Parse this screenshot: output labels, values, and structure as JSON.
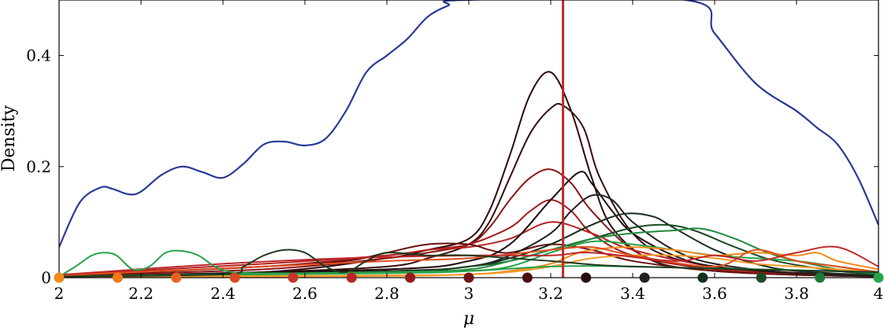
{
  "chart_data": {
    "type": "line",
    "xlabel": "μ",
    "ylabel": "Density",
    "xlim": [
      2,
      4
    ],
    "ylim": [
      0,
      0.5
    ],
    "x_ticks": [
      2,
      2.2,
      2.4,
      2.6,
      2.8,
      3,
      3.2,
      3.4,
      3.6,
      3.8,
      4
    ],
    "x_tick_labels": [
      "2",
      "2.2",
      "2.4",
      "2.6",
      "2.8",
      "3",
      "3.2",
      "3.4",
      "3.6",
      "3.8",
      "4"
    ],
    "y_ticks": [
      0,
      0.2,
      0.4
    ],
    "y_tick_labels": [
      "0",
      "0.2",
      "0.4"
    ],
    "grid": false,
    "vline": {
      "x": 3.23,
      "color": "#c0282b"
    },
    "series": [
      {
        "color": "#2a3a96",
        "x": [
          2.0,
          2.05,
          2.1,
          2.13,
          2.17,
          2.2,
          2.25,
          2.3,
          2.35,
          2.4,
          2.45,
          2.5,
          2.55,
          2.6,
          2.65,
          2.7,
          2.75,
          2.8,
          2.85,
          2.9,
          2.95,
          2.99,
          3.53,
          3.6,
          3.7,
          3.8,
          3.85,
          3.9,
          3.95,
          4.0
        ],
        "y": [
          0.055,
          0.135,
          0.162,
          0.16,
          0.15,
          0.155,
          0.185,
          0.2,
          0.19,
          0.18,
          0.205,
          0.24,
          0.245,
          0.238,
          0.25,
          0.3,
          0.37,
          0.4,
          0.43,
          0.47,
          0.49,
          0.5,
          0.5,
          0.44,
          0.35,
          0.3,
          0.27,
          0.24,
          0.18,
          0.095
        ]
      },
      {
        "color": "#2a0608",
        "x": [
          2.0,
          2.5,
          2.8,
          2.9,
          3.0,
          3.05,
          3.1,
          3.15,
          3.2,
          3.25,
          3.3,
          3.35,
          3.45,
          3.6,
          3.8,
          4.0
        ],
        "y": [
          0.002,
          0.01,
          0.035,
          0.05,
          0.07,
          0.12,
          0.22,
          0.33,
          0.37,
          0.3,
          0.18,
          0.09,
          0.03,
          0.012,
          0.005,
          0.002
        ]
      },
      {
        "color": "#3a0c0c",
        "x": [
          2.0,
          2.5,
          2.8,
          2.9,
          3.0,
          3.05,
          3.1,
          3.15,
          3.2,
          3.23,
          3.28,
          3.32,
          3.4,
          3.5,
          3.7,
          4.0
        ],
        "y": [
          0.002,
          0.01,
          0.02,
          0.035,
          0.06,
          0.1,
          0.18,
          0.26,
          0.305,
          0.31,
          0.27,
          0.18,
          0.08,
          0.035,
          0.012,
          0.003
        ]
      },
      {
        "color": "#8a1616",
        "x": [
          2.0,
          2.5,
          2.8,
          2.9,
          3.0,
          3.05,
          3.1,
          3.15,
          3.2,
          3.25,
          3.3,
          3.4,
          3.5,
          3.7,
          4.0
        ],
        "y": [
          0.004,
          0.015,
          0.035,
          0.045,
          0.06,
          0.09,
          0.14,
          0.18,
          0.195,
          0.17,
          0.12,
          0.05,
          0.025,
          0.012,
          0.004
        ]
      },
      {
        "color": "#a11d1d",
        "x": [
          2.0,
          2.5,
          2.8,
          2.9,
          3.0,
          3.1,
          3.15,
          3.2,
          3.25,
          3.3,
          3.4,
          3.6,
          3.8,
          4.0
        ],
        "y": [
          0.004,
          0.02,
          0.04,
          0.05,
          0.06,
          0.09,
          0.12,
          0.14,
          0.12,
          0.08,
          0.04,
          0.015,
          0.006,
          0.003
        ]
      },
      {
        "color": "#b42222",
        "x": [
          2.0,
          2.5,
          2.8,
          2.9,
          3.0,
          3.1,
          3.2,
          3.3,
          3.4,
          3.6,
          3.8,
          4.0
        ],
        "y": [
          0.005,
          0.025,
          0.04,
          0.05,
          0.055,
          0.07,
          0.1,
          0.08,
          0.05,
          0.02,
          0.008,
          0.004
        ]
      },
      {
        "color": "#6a1010",
        "x": [
          2.0,
          2.5,
          2.7,
          2.8,
          2.9,
          3.0,
          3.05,
          3.1,
          3.2,
          3.3,
          3.4,
          3.6,
          3.8,
          4.0
        ],
        "y": [
          0.003,
          0.02,
          0.03,
          0.045,
          0.06,
          0.06,
          0.05,
          0.045,
          0.06,
          0.05,
          0.03,
          0.012,
          0.005,
          0.002
        ]
      },
      {
        "color": "#1e0a0a",
        "x": [
          2.0,
          2.8,
          3.0,
          3.1,
          3.2,
          3.27,
          3.3,
          3.35,
          3.4,
          3.5,
          3.6,
          3.8,
          4.0
        ],
        "y": [
          0.002,
          0.015,
          0.03,
          0.06,
          0.14,
          0.19,
          0.17,
          0.12,
          0.08,
          0.04,
          0.02,
          0.008,
          0.003
        ]
      },
      {
        "color": "#1f1f1f",
        "x": [
          2.0,
          2.8,
          3.0,
          3.1,
          3.2,
          3.25,
          3.3,
          3.35,
          3.4,
          3.5,
          3.6,
          3.8,
          4.0
        ],
        "y": [
          0.002,
          0.012,
          0.02,
          0.04,
          0.08,
          0.12,
          0.148,
          0.14,
          0.1,
          0.05,
          0.025,
          0.008,
          0.003
        ]
      },
      {
        "color": "#152e1c",
        "x": [
          2.0,
          2.8,
          3.0,
          3.1,
          3.2,
          3.3,
          3.38,
          3.45,
          3.5,
          3.6,
          3.7,
          3.8,
          4.0
        ],
        "y": [
          0.002,
          0.01,
          0.02,
          0.035,
          0.06,
          0.095,
          0.115,
          0.11,
          0.09,
          0.05,
          0.025,
          0.012,
          0.004
        ]
      },
      {
        "color": "#1b4a26",
        "x": [
          2.0,
          2.8,
          3.0,
          3.1,
          3.2,
          3.3,
          3.4,
          3.48,
          3.55,
          3.65,
          3.75,
          3.9,
          4.0
        ],
        "y": [
          0.002,
          0.01,
          0.02,
          0.03,
          0.05,
          0.07,
          0.09,
          0.095,
          0.085,
          0.055,
          0.03,
          0.012,
          0.006
        ]
      },
      {
        "color": "#228a3c",
        "x": [
          2.0,
          2.8,
          3.0,
          3.1,
          3.2,
          3.3,
          3.4,
          3.5,
          3.57,
          3.65,
          3.75,
          3.9,
          4.0
        ],
        "y": [
          0.002,
          0.01,
          0.015,
          0.03,
          0.05,
          0.07,
          0.08,
          0.085,
          0.088,
          0.07,
          0.04,
          0.015,
          0.007
        ]
      },
      {
        "color": "#2aa24a",
        "x": [
          2.0,
          2.8,
          3.0,
          3.1,
          3.2,
          3.3,
          3.4,
          3.5,
          3.6,
          3.7,
          3.8,
          3.9,
          4.0
        ],
        "y": [
          0.002,
          0.008,
          0.012,
          0.02,
          0.045,
          0.065,
          0.06,
          0.05,
          0.04,
          0.035,
          0.03,
          0.02,
          0.01
        ]
      },
      {
        "color": "#f08a1a",
        "x": [
          2.0,
          2.8,
          3.0,
          3.1,
          3.2,
          3.25,
          3.3,
          3.4,
          3.5,
          3.6,
          3.7,
          3.8,
          3.85,
          3.9,
          4.0
        ],
        "y": [
          0.001,
          0.004,
          0.006,
          0.012,
          0.025,
          0.04,
          0.05,
          0.055,
          0.05,
          0.04,
          0.045,
          0.04,
          0.045,
          0.03,
          0.015
        ]
      },
      {
        "color": "#f59a2a",
        "x": [
          2.0,
          2.8,
          3.0,
          3.1,
          3.2,
          3.3,
          3.4,
          3.5,
          3.6,
          3.7,
          3.8,
          3.9,
          4.0
        ],
        "y": [
          0.001,
          0.003,
          0.006,
          0.01,
          0.02,
          0.035,
          0.04,
          0.04,
          0.035,
          0.025,
          0.02,
          0.015,
          0.01
        ]
      },
      {
        "color": "#e0501e",
        "x": [
          2.0,
          2.5,
          2.8,
          3.0,
          3.2,
          3.3,
          3.4,
          3.6,
          3.7,
          3.8,
          3.9,
          4.0
        ],
        "y": [
          0.004,
          0.02,
          0.03,
          0.035,
          0.05,
          0.055,
          0.04,
          0.02,
          0.05,
          0.03,
          0.02,
          0.01
        ]
      },
      {
        "color": "#c0282b",
        "x": [
          2.0,
          2.4,
          2.7,
          3.0,
          3.2,
          3.3,
          3.5,
          3.6,
          3.7,
          3.8,
          3.9,
          4.0
        ],
        "y": [
          0.005,
          0.025,
          0.035,
          0.04,
          0.04,
          0.045,
          0.03,
          0.04,
          0.03,
          0.045,
          0.055,
          0.02
        ]
      },
      {
        "color": "#2aa24a",
        "x": [
          2.0,
          2.04,
          2.08,
          2.11,
          2.14,
          2.18,
          2.22,
          2.26,
          2.3,
          2.34,
          2.38,
          2.42,
          2.5,
          2.6,
          2.8,
          3.0,
          3.2,
          3.4,
          4.0
        ],
        "y": [
          0.002,
          0.02,
          0.04,
          0.045,
          0.04,
          0.015,
          0.02,
          0.045,
          0.048,
          0.04,
          0.02,
          0.01,
          0.008,
          0.008,
          0.01,
          0.012,
          0.02,
          0.02,
          0.01
        ]
      },
      {
        "color": "#1e3a1e",
        "x": [
          2.0,
          2.4,
          2.45,
          2.5,
          2.55,
          2.6,
          2.65,
          2.7,
          2.75,
          2.8,
          2.9,
          3.0,
          3.2,
          3.4,
          4.0
        ],
        "y": [
          0.002,
          0.006,
          0.02,
          0.04,
          0.05,
          0.045,
          0.02,
          0.01,
          0.03,
          0.045,
          0.04,
          0.04,
          0.03,
          0.02,
          0.01
        ]
      }
    ],
    "markers": [
      {
        "x": 2.0,
        "color": "#f08a1a"
      },
      {
        "x": 2.143,
        "color": "#f07a1c"
      },
      {
        "x": 2.286,
        "color": "#e9631e"
      },
      {
        "x": 2.429,
        "color": "#d94a24"
      },
      {
        "x": 2.571,
        "color": "#c8342a"
      },
      {
        "x": 2.714,
        "color": "#b82628"
      },
      {
        "x": 2.857,
        "color": "#951c1c"
      },
      {
        "x": 3.0,
        "color": "#6e1414"
      },
      {
        "x": 3.143,
        "color": "#4a0e10"
      },
      {
        "x": 3.286,
        "color": "#2a0a0c"
      },
      {
        "x": 3.429,
        "color": "#222222"
      },
      {
        "x": 3.571,
        "color": "#15301d"
      },
      {
        "x": 3.714,
        "color": "#1b4a26"
      },
      {
        "x": 3.857,
        "color": "#1f7a36"
      },
      {
        "x": 4.0,
        "color": "#2aa24a"
      }
    ]
  }
}
